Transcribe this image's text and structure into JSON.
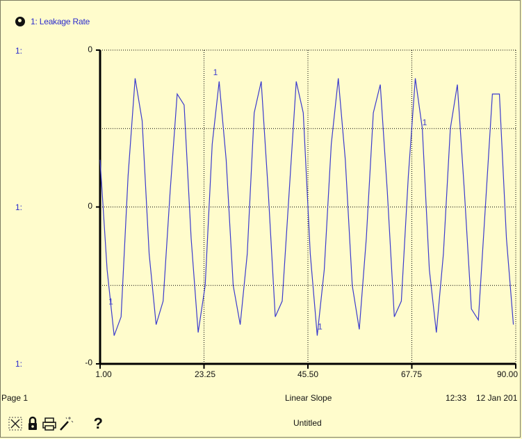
{
  "legend": {
    "label": "1: Leakage Rate"
  },
  "y_axis_labels": [
    "1:",
    "1:",
    "1:"
  ],
  "y_ticks": [
    "0",
    "0",
    "-0"
  ],
  "x_ticks": [
    "1.00",
    "23.25",
    "45.50",
    "67.75",
    "90.00"
  ],
  "footer": {
    "page": "Page 1",
    "run_name": "Linear Slope",
    "model_name": "Untitled",
    "time": "12:33",
    "date": "12 Jan 201"
  },
  "toolbar": {
    "icons": [
      "x-axis-lock-icon",
      "lock-icon",
      "print-icon",
      "magic-wand-icon",
      "help-icon"
    ],
    "help_label": "?"
  },
  "colors": {
    "background": "#fffccc",
    "series": "#3a3acc",
    "axis": "#000000",
    "grid": "#000000"
  },
  "chart_data": {
    "type": "line",
    "title": "",
    "xlabel": "",
    "ylabel": "",
    "xlim": [
      1.0,
      90.0
    ],
    "ylim": [
      -1,
      1
    ],
    "grid": true,
    "legend_position": "top-left",
    "series": [
      {
        "name": "Leakage Rate",
        "x": [
          1.0,
          2.5,
          4.0,
          5.5,
          7.0,
          8.5,
          10.0,
          11.5,
          13.0,
          14.5,
          16.0,
          17.5,
          19.0,
          20.5,
          22.0,
          23.5,
          25.0,
          26.5,
          28.0,
          29.5,
          31.0,
          32.5,
          34.0,
          35.5,
          37.0,
          38.5,
          40.0,
          41.5,
          43.0,
          44.5,
          46.0,
          47.5,
          49.0,
          50.5,
          52.0,
          53.5,
          55.0,
          56.5,
          58.0,
          59.5,
          61.0,
          62.5,
          64.0,
          65.5,
          67.0,
          68.5,
          70.0,
          71.5,
          73.0,
          74.5,
          76.0,
          77.5,
          79.0,
          80.5,
          82.0,
          83.5,
          85.0,
          86.5,
          88.0,
          89.5
        ],
        "y": [
          0.3,
          -0.4,
          -0.82,
          -0.7,
          0.2,
          0.82,
          0.55,
          -0.3,
          -0.75,
          -0.6,
          0.1,
          0.72,
          0.65,
          -0.2,
          -0.8,
          -0.5,
          0.4,
          0.8,
          0.3,
          -0.5,
          -0.75,
          -0.3,
          0.6,
          0.8,
          0.1,
          -0.7,
          -0.6,
          0.1,
          0.8,
          0.6,
          -0.3,
          -0.82,
          -0.4,
          0.4,
          0.82,
          0.3,
          -0.5,
          -0.78,
          -0.2,
          0.6,
          0.78,
          0.1,
          -0.7,
          -0.6,
          0.2,
          0.82,
          0.5,
          -0.4,
          -0.8,
          -0.3,
          0.5,
          0.78,
          0.1,
          -0.65,
          -0.72,
          0.0,
          0.72,
          0.72,
          -0.2,
          -0.75
        ],
        "labels": [
          {
            "x": 2.8,
            "y": -0.62,
            "text": "1"
          },
          {
            "x": 25.2,
            "y": 0.84,
            "text": "1"
          },
          {
            "x": 47.6,
            "y": -0.78,
            "text": "1"
          },
          {
            "x": 70.0,
            "y": 0.52,
            "text": "1"
          }
        ]
      }
    ]
  }
}
